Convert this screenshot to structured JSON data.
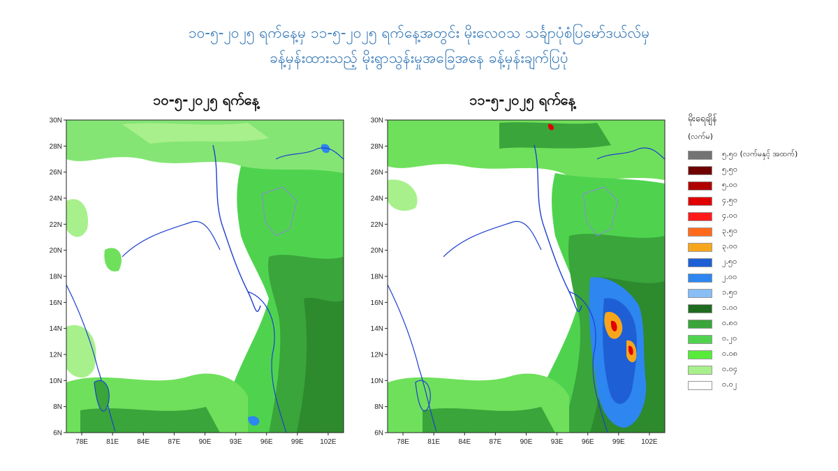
{
  "title": {
    "line1": "၁၀-၅-၂၀၂၅ ရက်နေ့မှ ၁၁-၅-၂၀၂၅ ရက်နေ့အတွင်း မိုးလေဝသ သင်္ချာပုံစံပြမော်ဒယ်လ်မှ",
    "line2": "ခန့်မှန်းထားသည့် မိုးရွာသွန်းမှုအခြေအနေ ခန့်မှန်းချက်ပြပုံ"
  },
  "panels": [
    {
      "date": "၁၀-၅-၂၀၂၅ ရက်နေ့"
    },
    {
      "date": "၁၁-၅-၂၀၂၅ ရက်နေ့"
    }
  ],
  "axes": {
    "lat_labels": [
      "30N",
      "28N",
      "26N",
      "24N",
      "22N",
      "20N",
      "18N",
      "16N",
      "14N",
      "12N",
      "10N",
      "8N",
      "6N"
    ],
    "lon_labels": [
      "78E",
      "81E",
      "84E",
      "87E",
      "90E",
      "93E",
      "96E",
      "99E",
      "102E"
    ],
    "lat_range": [
      6,
      30
    ],
    "lon_range": [
      76.5,
      103.5
    ]
  },
  "legend": {
    "heading": "မိုးရေချိန်",
    "unit": "(လက်မ)",
    "items": [
      {
        "label": "၅.၅၀ (လက်မနှင့် အထက်)",
        "color": "#737373"
      },
      {
        "label": "၅.၅၀",
        "color": "#6e0000"
      },
      {
        "label": "၅.၀၀",
        "color": "#b00000"
      },
      {
        "label": "၄.၅၀",
        "color": "#e00000"
      },
      {
        "label": "၄.၀၀",
        "color": "#ff1a1a"
      },
      {
        "label": "၃.၅၀",
        "color": "#ff6a1a"
      },
      {
        "label": "၃.၀၀",
        "color": "#f7a61c"
      },
      {
        "label": "၂.၅၀",
        "color": "#1f5fd6"
      },
      {
        "label": "၂.၀၀",
        "color": "#2e86f0"
      },
      {
        "label": "၁.၅၀",
        "color": "#88bdf5"
      },
      {
        "label": "၁.၀၀",
        "color": "#1f6b1f"
      },
      {
        "label": "၀.၈၀",
        "color": "#3aa53a"
      },
      {
        "label": "၀.၂၀",
        "color": "#4fd34f"
      },
      {
        "label": "၀.၀၈",
        "color": "#57ec3a"
      },
      {
        "label": "၀.၀၄",
        "color": "#a8f08c"
      },
      {
        "label": "၀.၀၂",
        "color": "#ffffff"
      }
    ]
  }
}
